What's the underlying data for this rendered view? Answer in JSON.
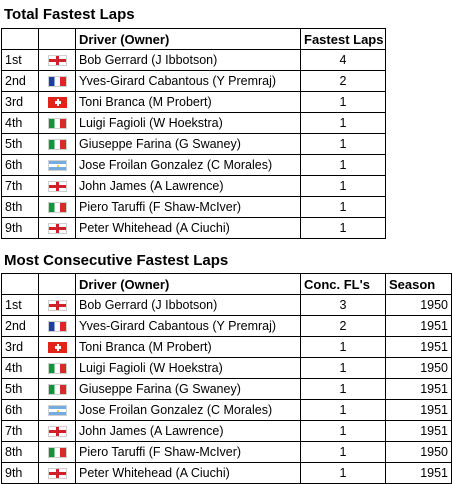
{
  "table1": {
    "title": "Total Fastest Laps",
    "headers": {
      "driver": "Driver (Owner)",
      "value": "Fastest Laps"
    },
    "rows": [
      {
        "pos": "1st",
        "flag": "eng",
        "driver": "Bob Gerrard (J Ibbotson)",
        "value": "4"
      },
      {
        "pos": "2nd",
        "flag": "fra",
        "driver": "Yves-Girard Cabantous (Y Premraj)",
        "value": "2"
      },
      {
        "pos": "3rd",
        "flag": "sui",
        "driver": "Toni Branca (M Probert)",
        "value": "1"
      },
      {
        "pos": "4th",
        "flag": "ita",
        "driver": "Luigi Fagioli (W Hoekstra)",
        "value": "1"
      },
      {
        "pos": "5th",
        "flag": "ita",
        "driver": "Giuseppe Farina (G Swaney)",
        "value": "1"
      },
      {
        "pos": "6th",
        "flag": "arg",
        "driver": "Jose Froilan Gonzalez (C Morales)",
        "value": "1"
      },
      {
        "pos": "7th",
        "flag": "eng",
        "driver": "John James (A Lawrence)",
        "value": "1"
      },
      {
        "pos": "8th",
        "flag": "ita",
        "driver": "Piero Taruffi (F Shaw-McIver)",
        "value": "1"
      },
      {
        "pos": "9th",
        "flag": "eng",
        "driver": "Peter Whitehead (A Ciuchi)",
        "value": "1"
      }
    ]
  },
  "table2": {
    "title": "Most Consecutive Fastest Laps",
    "headers": {
      "driver": "Driver (Owner)",
      "value": "Conc. FL's",
      "season": "Season"
    },
    "rows": [
      {
        "pos": "1st",
        "flag": "eng",
        "driver": "Bob Gerrard (J Ibbotson)",
        "value": "3",
        "season": "1950"
      },
      {
        "pos": "2nd",
        "flag": "fra",
        "driver": "Yves-Girard Cabantous (Y Premraj)",
        "value": "2",
        "season": "1951"
      },
      {
        "pos": "3rd",
        "flag": "sui",
        "driver": "Toni Branca (M Probert)",
        "value": "1",
        "season": "1951"
      },
      {
        "pos": "4th",
        "flag": "ita",
        "driver": "Luigi Fagioli (W Hoekstra)",
        "value": "1",
        "season": "1950"
      },
      {
        "pos": "5th",
        "flag": "ita",
        "driver": "Giuseppe Farina (G Swaney)",
        "value": "1",
        "season": "1951"
      },
      {
        "pos": "6th",
        "flag": "arg",
        "driver": "Jose Froilan Gonzalez (C Morales)",
        "value": "1",
        "season": "1951"
      },
      {
        "pos": "7th",
        "flag": "eng",
        "driver": "John James (A Lawrence)",
        "value": "1",
        "season": "1951"
      },
      {
        "pos": "8th",
        "flag": "ita",
        "driver": "Piero Taruffi (F Shaw-McIver)",
        "value": "1",
        "season": "1950"
      },
      {
        "pos": "9th",
        "flag": "eng",
        "driver": "Peter Whitehead (A Ciuchi)",
        "value": "1",
        "season": "1951"
      }
    ]
  },
  "flag_icons": {
    "eng": "england-flag-icon",
    "fra": "france-flag-icon",
    "sui": "switzerland-flag-icon",
    "ita": "italy-flag-icon",
    "arg": "argentina-flag-icon"
  }
}
